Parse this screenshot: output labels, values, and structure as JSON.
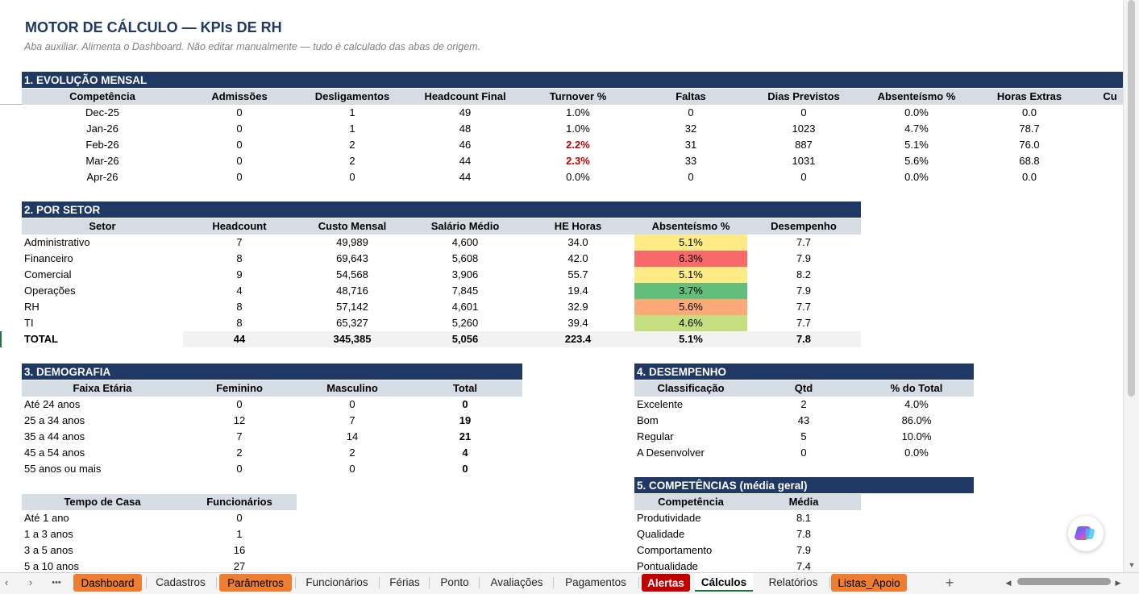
{
  "title": "MOTOR DE CÁLCULO — KPIs DE RH",
  "subtitle": "Aba auxiliar. Alimenta o Dashboard. Não editar manualmente — tudo é calculado das abas de origem.",
  "s1": {
    "title": "1. EVOLUÇÃO MENSAL",
    "headers": [
      "Competência",
      "Admissões",
      "Desligamentos",
      "Headcount Final",
      "Turnover %",
      "Faltas",
      "Dias Previstos",
      "Absenteísmo %",
      "Horas Extras",
      "Cu"
    ],
    "rows": [
      [
        "Dec-25",
        "0",
        "1",
        "49",
        "1.0%",
        "0",
        "0",
        "0.0%",
        "0.0"
      ],
      [
        "Jan-26",
        "0",
        "1",
        "48",
        "1.0%",
        "32",
        "1023",
        "4.7%",
        "78.7"
      ],
      [
        "Feb-26",
        "0",
        "2",
        "46",
        "2.2%",
        "31",
        "887",
        "5.1%",
        "76.0"
      ],
      [
        "Mar-26",
        "0",
        "2",
        "44",
        "2.3%",
        "33",
        "1031",
        "5.6%",
        "68.8"
      ],
      [
        "Apr-26",
        "0",
        "0",
        "44",
        "0.0%",
        "0",
        "0",
        "0.0%",
        "0.0"
      ]
    ]
  },
  "s2": {
    "title": "2. POR SETOR",
    "headers": [
      "Setor",
      "Headcount",
      "Custo Mensal",
      "Salário Médio",
      "HE Horas",
      "Absenteísmo %",
      "Desempenho"
    ],
    "rows": [
      [
        "Administrativo",
        "7",
        "49,989",
        "4,600",
        "34.0",
        "5.1%",
        "7.7"
      ],
      [
        "Financeiro",
        "8",
        "69,643",
        "5,608",
        "42.0",
        "6.3%",
        "7.9"
      ],
      [
        "Comercial",
        "9",
        "54,568",
        "3,906",
        "55.7",
        "5.1%",
        "8.2"
      ],
      [
        "Operações",
        "4",
        "48,716",
        "7,845",
        "19.4",
        "3.7%",
        "7.9"
      ],
      [
        "RH",
        "8",
        "57,142",
        "4,601",
        "32.9",
        "5.6%",
        "7.7"
      ],
      [
        "TI",
        "8",
        "65,327",
        "5,260",
        "39.4",
        "4.6%",
        "7.7"
      ]
    ],
    "abs_colors": [
      "#ffeb84",
      "#f8696b",
      "#ffeb84",
      "#63be7b",
      "#fbaa77",
      "#c5de80"
    ],
    "total": [
      "TOTAL",
      "44",
      "345,385",
      "5,056",
      "223.4",
      "5.1%",
      "7.8"
    ]
  },
  "s3": {
    "title": "3. DEMOGRAFIA",
    "headers": [
      "Faixa Etária",
      "Feminino",
      "Masculino",
      "Total"
    ],
    "rows": [
      [
        "Até 24 anos",
        "0",
        "0",
        "0"
      ],
      [
        "25 a 34 anos",
        "12",
        "7",
        "19"
      ],
      [
        "35 a 44 anos",
        "7",
        "14",
        "21"
      ],
      [
        "45 a 54 anos",
        "2",
        "2",
        "4"
      ],
      [
        "55 anos ou mais",
        "0",
        "0",
        "0"
      ]
    ],
    "tenure_headers": [
      "Tempo de Casa",
      "Funcionários"
    ],
    "tenure_rows": [
      [
        "Até 1 ano",
        "0"
      ],
      [
        "1 a 3 anos",
        "1"
      ],
      [
        "3 a 5 anos",
        "16"
      ],
      [
        "5 a 10 anos",
        "27"
      ]
    ]
  },
  "s4": {
    "title": "4. DESEMPENHO",
    "headers": [
      "Classificação",
      "Qtd",
      "% do Total"
    ],
    "rows": [
      [
        "Excelente",
        "2",
        "4.0%"
      ],
      [
        "Bom",
        "43",
        "86.0%"
      ],
      [
        "Regular",
        "5",
        "10.0%"
      ],
      [
        "A Desenvolver",
        "0",
        "0.0%"
      ]
    ]
  },
  "s5": {
    "title": "5. COMPETÊNCIAS (média geral)",
    "headers": [
      "Competência",
      "Média"
    ],
    "rows": [
      [
        "Produtividade",
        "8.1"
      ],
      [
        "Qualidade",
        "7.8"
      ],
      [
        "Comportamento",
        "7.9"
      ],
      [
        "Pontualidade",
        "7.4"
      ]
    ]
  },
  "tabs": {
    "more": "•••",
    "items": [
      "Dashboard",
      "Cadastros",
      "Parâmetros",
      "Funcionários",
      "Férias",
      "Ponto",
      "Avaliações",
      "Pagamentos",
      "Alertas",
      "Cálculos",
      "Relatórios",
      "Listas_Apoio"
    ],
    "add": "+"
  },
  "colors": {
    "header_navy": "#1f3864",
    "header_gray": "#d6dce4",
    "tab_orange": "#ed7d31",
    "tab_red": "#c00000"
  }
}
